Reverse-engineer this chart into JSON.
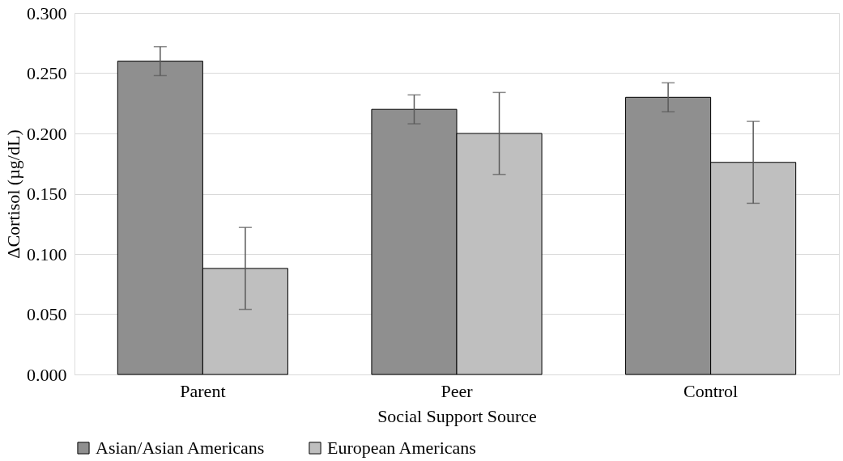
{
  "chart_data": {
    "type": "bar",
    "xlabel": "Social Support Source",
    "ylabel": "ΔCortisol (µg/dL)",
    "categories": [
      "Parent",
      "Peer",
      "Control"
    ],
    "series": [
      {
        "name": "Asian/Asian Americans",
        "color": "#8f8f8f",
        "values": [
          0.26,
          0.22,
          0.23
        ],
        "errors": [
          0.012,
          0.012,
          0.012
        ]
      },
      {
        "name": "European Americans",
        "color": "#bfbfbf",
        "values": [
          0.088,
          0.2,
          0.176
        ],
        "errors": [
          0.034,
          0.034,
          0.034
        ]
      }
    ],
    "ylim": [
      0,
      0.3
    ],
    "yticks": [
      {
        "value": 0,
        "label": "0.000"
      },
      {
        "value": 0.05,
        "label": "0.050"
      },
      {
        "value": 0.1,
        "label": "0.100"
      },
      {
        "value": 0.15,
        "label": "0.150"
      },
      {
        "value": 0.2,
        "label": "0.200"
      },
      {
        "value": 0.25,
        "label": "0.250"
      },
      {
        "value": 0.3,
        "label": "0.300"
      }
    ],
    "grid": "y",
    "legend": "bottom"
  }
}
